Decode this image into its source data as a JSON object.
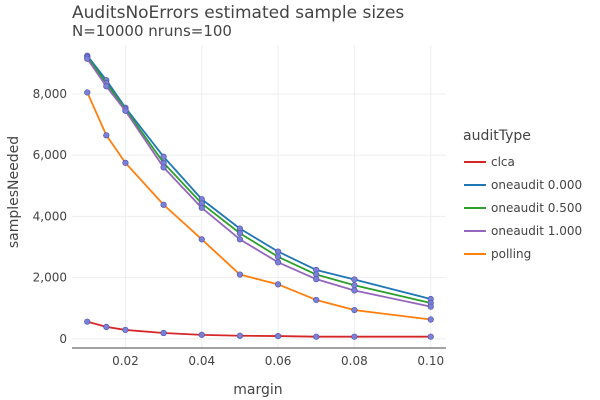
{
  "chart_data": {
    "type": "line",
    "title": "AuditsNoErrors estimated sample sizes",
    "subtitle": "N=10000 nruns=100",
    "xlabel": "margin",
    "ylabel": "samplesNeeded",
    "xlim": [
      0.006,
      0.104
    ],
    "ylim": [
      -300,
      9600
    ],
    "x_ticks": [
      0.02,
      0.04,
      0.06,
      0.08,
      0.1
    ],
    "x_tick_labels": [
      "0.02",
      "0.04",
      "0.06",
      "0.08",
      "0.10"
    ],
    "y_ticks": [
      0,
      2000,
      4000,
      6000,
      8000
    ],
    "y_tick_labels": [
      "0",
      "2,000",
      "4,000",
      "6,000",
      "8,000"
    ],
    "grid": true,
    "legend_title": "auditType",
    "legend_position": "right",
    "marker_color": "#7b7fd6",
    "x": [
      0.01,
      0.015,
      0.02,
      0.03,
      0.04,
      0.05,
      0.06,
      0.07,
      0.08,
      0.1
    ],
    "series": [
      {
        "name": "clca",
        "color": "#d62728",
        "values": [
          560,
          390,
          290,
          190,
          130,
          100,
          90,
          70,
          70,
          70
        ]
      },
      {
        "name": "oneaudit 0.000",
        "color": "#1f77b4",
        "values": [
          9250,
          8450,
          7550,
          5950,
          4560,
          3600,
          2850,
          2250,
          1940,
          1300
        ]
      },
      {
        "name": "oneaudit 0.500",
        "color": "#2ca02c",
        "values": [
          9200,
          8350,
          7500,
          5750,
          4420,
          3450,
          2680,
          2100,
          1750,
          1170
        ]
      },
      {
        "name": "oneaudit 1.000",
        "color": "#9467bd",
        "values": [
          9150,
          8250,
          7450,
          5600,
          4280,
          3250,
          2500,
          1950,
          1580,
          1050
        ]
      },
      {
        "name": "polling",
        "color": "#ff7f0e",
        "values": [
          8050,
          6650,
          5750,
          4380,
          3250,
          2100,
          1780,
          1270,
          940,
          630
        ]
      }
    ]
  }
}
